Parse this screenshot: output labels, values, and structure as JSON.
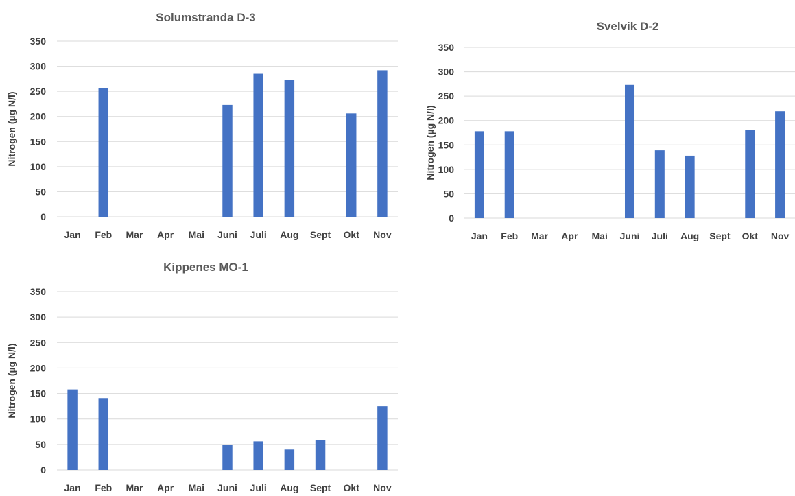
{
  "chart_data": [
    {
      "type": "bar",
      "title": "Solumstranda D-3",
      "xlabel": "",
      "ylabel": "Nitrogen (µg N/l)",
      "categories": [
        "Jan",
        "Feb",
        "Mar",
        "Apr",
        "Mai",
        "Juni",
        "Juli",
        "Aug",
        "Sept",
        "Okt",
        "Nov"
      ],
      "series": [
        {
          "values": [
            null,
            256,
            null,
            null,
            null,
            223,
            285,
            273,
            null,
            206,
            292
          ]
        }
      ],
      "yticks": [
        "0",
        "50",
        "100",
        "150",
        "200",
        "250",
        "300",
        "350"
      ],
      "ylim": [
        0,
        350
      ],
      "grid": true,
      "color": "#4472c4"
    },
    {
      "type": "bar",
      "title": "Svelvik D-2",
      "xlabel": "",
      "ylabel": "Nitrogen (µg N/l)",
      "categories": [
        "Jan",
        "Feb",
        "Mar",
        "Apr",
        "Mai",
        "Juni",
        "Juli",
        "Aug",
        "Sept",
        "Okt",
        "Nov"
      ],
      "series": [
        {
          "values": [
            178,
            178,
            null,
            null,
            null,
            273,
            139,
            128,
            null,
            180,
            219
          ]
        }
      ],
      "yticks": [
        "0",
        "50",
        "100",
        "150",
        "200",
        "250",
        "300",
        "350"
      ],
      "ylim": [
        0,
        350
      ],
      "grid": true,
      "color": "#4472c4"
    },
    {
      "type": "bar",
      "title": "Kippenes MO-1",
      "xlabel": "",
      "ylabel": "Nitrogen (µg N/l)",
      "categories": [
        "Jan",
        "Feb",
        "Mar",
        "Apr",
        "Mai",
        "Juni",
        "Juli",
        "Aug",
        "Sept",
        "Okt",
        "Nov"
      ],
      "series": [
        {
          "values": [
            158,
            141,
            null,
            null,
            null,
            49,
            56,
            40,
            58,
            null,
            125
          ]
        }
      ],
      "yticks": [
        "0",
        "50",
        "100",
        "150",
        "200",
        "250",
        "300",
        "350"
      ],
      "ylim": [
        0,
        350
      ],
      "grid": true,
      "color": "#4472c4"
    }
  ]
}
